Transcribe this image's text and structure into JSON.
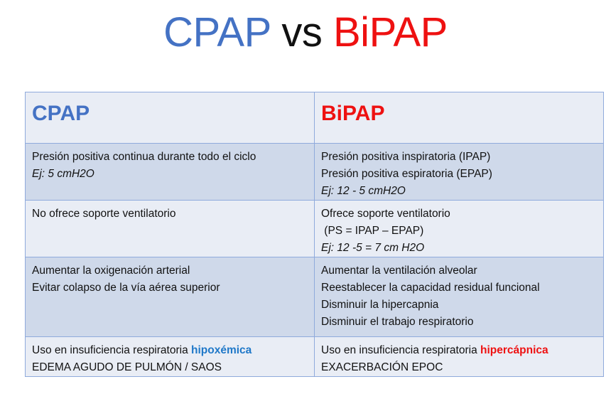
{
  "title": {
    "left": "CPAP",
    "middle": "vs",
    "right": "BiPAP"
  },
  "table": {
    "headers": [
      "CPAP",
      "BiPAP"
    ],
    "rows": [
      {
        "cpap": {
          "line1": "Presión positiva continua durante todo el ciclo",
          "line2": "Ej: 5 cmH2O"
        },
        "bipap": {
          "line1": "Presión positiva inspiratoria (IPAP)",
          "line2": "Presión positiva espiratoria (EPAP)",
          "line3": "Ej: 12 - 5 cmH2O"
        }
      },
      {
        "cpap": {
          "line1": "No ofrece soporte ventilatorio"
        },
        "bipap": {
          "line1": "Ofrece soporte ventilatorio",
          "line2": " (PS = IPAP – EPAP)",
          "line3": "Ej: 12 -5 = 7 cm H2O"
        }
      },
      {
        "cpap": {
          "line1": "Aumentar la oxigenación arterial",
          "line2": "Evitar colapso de la vía aérea superior"
        },
        "bipap": {
          "line1": "Aumentar la ventilación alveolar",
          "line2": "Reestablecer la capacidad residual funcional",
          "line3": "Disminuir la hipercapnia",
          "line4": "Disminuir el trabajo respiratorio"
        }
      },
      {
        "cpap": {
          "line1_prefix": "Uso en insuficiencia respiratoria ",
          "line1_highlight": "hipoxémica",
          "line2": "EDEMA AGUDO DE PULMÓN / SAOS"
        },
        "bipap": {
          "line1_prefix": "Uso en insuficiencia respiratoria ",
          "line1_highlight": "hipercápnica",
          "line2": "EXACERBACIÓN EPOC"
        }
      }
    ]
  },
  "colors": {
    "cpap_accent": "#4472c4",
    "bipap_accent": "#ee1111",
    "hypoxemic_highlight": "#1f78c8",
    "row_dark": "#cfd9ea",
    "row_light": "#e9edf5",
    "border": "#8faadc"
  }
}
